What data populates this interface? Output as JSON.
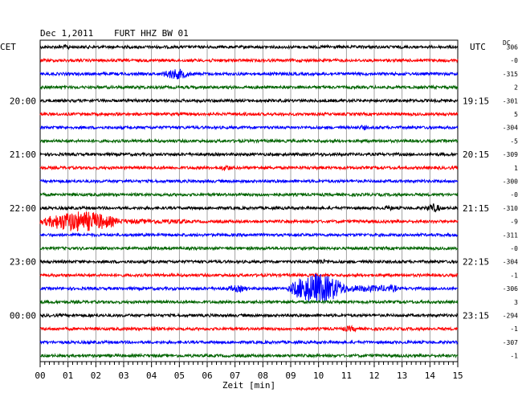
{
  "header": {
    "date": "Dec 1,2011",
    "station": "FURT HHZ BW 01",
    "left_tz": "CET",
    "right_tz": "UTC",
    "dc_label": "DC"
  },
  "chart_data": {
    "type": "line",
    "title": "Dec 1,2011   FURT HHZ BW 01",
    "xlabel": "Zeit [min]",
    "x_ticks": [
      "00",
      "01",
      "02",
      "03",
      "04",
      "05",
      "06",
      "07",
      "08",
      "09",
      "10",
      "11",
      "12",
      "13",
      "14",
      "15"
    ],
    "xlim": [
      0,
      15
    ],
    "grid": true,
    "trace_colors": [
      "#000000",
      "#ff0000",
      "#0000ff",
      "#006400"
    ],
    "left_time_labels": [
      {
        "trace": 4,
        "text": "20:00"
      },
      {
        "trace": 8,
        "text": "21:00"
      },
      {
        "trace": 12,
        "text": "22:00"
      },
      {
        "trace": 16,
        "text": "23:00"
      },
      {
        "trace": 20,
        "text": "00:00"
      }
    ],
    "right_time_labels": [
      {
        "trace": 4,
        "text": "19:15"
      },
      {
        "trace": 8,
        "text": "20:15"
      },
      {
        "trace": 12,
        "text": "21:15"
      },
      {
        "trace": 16,
        "text": "22:15"
      },
      {
        "trace": 20,
        "text": "23:15"
      }
    ],
    "dc_offsets": [
      "306",
      "-0",
      "-315",
      "2",
      "-301",
      "5",
      "-304",
      "-5",
      "-309",
      "1",
      "-300",
      "-0",
      "-310",
      "-9",
      "-311",
      "-0",
      "-304",
      "-1",
      "-306",
      "3",
      "-294",
      "-1",
      "-307",
      "-1"
    ],
    "events": [
      {
        "trace": 0,
        "start": 0.8,
        "end": 1.4,
        "amp": 0.5
      },
      {
        "trace": 0,
        "start": 10.2,
        "end": 10.8,
        "amp": 0.35
      },
      {
        "trace": 1,
        "start": 6.0,
        "end": 6.5,
        "amp": 0.35
      },
      {
        "trace": 2,
        "start": 4.3,
        "end": 6.5,
        "amp": 0.9
      },
      {
        "trace": 2,
        "start": 8.3,
        "end": 8.9,
        "amp": 0.45
      },
      {
        "trace": 3,
        "start": 3.3,
        "end": 4.8,
        "amp": 0.3
      },
      {
        "trace": 4,
        "start": 3.0,
        "end": 4.5,
        "amp": 0.35
      },
      {
        "trace": 5,
        "start": 7.2,
        "end": 8.0,
        "amp": 0.3
      },
      {
        "trace": 6,
        "start": 11.4,
        "end": 12.2,
        "amp": 0.45
      },
      {
        "trace": 8,
        "start": 10.0,
        "end": 10.6,
        "amp": 0.3
      },
      {
        "trace": 9,
        "start": 6.4,
        "end": 7.4,
        "amp": 0.55
      },
      {
        "trace": 12,
        "start": 12.3,
        "end": 13.1,
        "amp": 0.5
      },
      {
        "trace": 12,
        "start": 13.8,
        "end": 15.0,
        "amp": 0.75
      },
      {
        "trace": 13,
        "start": 0.0,
        "end": 5.3,
        "amp": 1.8
      },
      {
        "trace": 16,
        "start": 9.7,
        "end": 11.2,
        "amp": 0.45
      },
      {
        "trace": 18,
        "start": 6.6,
        "end": 8.4,
        "amp": 0.6
      },
      {
        "trace": 18,
        "start": 8.9,
        "end": 12.8,
        "amp": 2.6
      },
      {
        "trace": 21,
        "start": 3.9,
        "end": 4.5,
        "amp": 0.45
      },
      {
        "trace": 21,
        "start": 10.7,
        "end": 12.3,
        "amp": 0.5
      }
    ]
  }
}
